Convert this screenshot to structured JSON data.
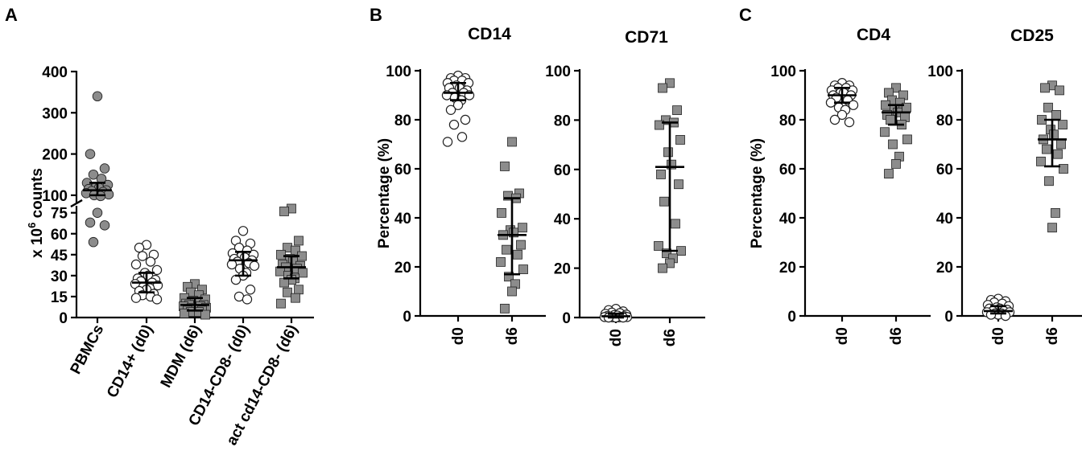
{
  "panels": {
    "A": {
      "letter": "A"
    },
    "B": {
      "letter": "B"
    },
    "C": {
      "letter": "C"
    }
  },
  "colors": {
    "filled_marker": "#8c8c8c",
    "open_marker": "#ffffff",
    "marker_edge": "#222222",
    "axis": "#000000"
  },
  "chart_data": [
    {
      "id": "A",
      "type": "scatter",
      "subtype": "dot-plot-broken-axis",
      "title": "",
      "ylabel_prefix": "x 10",
      "ylabel_exp": "6",
      "ylabel_suffix": " counts",
      "ylim_lower": [
        0,
        80
      ],
      "ylim_upper": [
        90,
        400
      ],
      "yticks_lower": [
        0,
        15,
        30,
        45,
        60,
        75
      ],
      "yticks_upper": [
        100,
        200,
        300,
        400
      ],
      "categories": [
        "PBMCs",
        "CD14+ (d0)",
        "MDM (d6)",
        "CD14-CD8- (d0)",
        "act cd14-CD8- (d6)"
      ],
      "markers": [
        "circle-filled",
        "circle-open",
        "square-filled",
        "circle-open",
        "square-filled"
      ],
      "groups": [
        {
          "values": [
            340,
            200,
            165,
            150,
            140,
            130,
            125,
            120,
            118,
            115,
            112,
            110,
            108,
            105,
            102,
            100,
            98,
            75,
            68,
            66,
            54
          ],
          "median": 112,
          "iqr": [
            100,
            130
          ]
        },
        {
          "values": [
            52,
            50,
            45,
            44,
            40,
            38,
            34,
            32,
            30,
            28,
            27,
            26,
            25,
            24,
            23,
            22,
            21,
            20,
            19,
            17,
            16,
            15,
            14,
            13
          ],
          "median": 25,
          "iqr": [
            18,
            32
          ]
        },
        {
          "values": [
            24,
            22,
            20,
            18,
            16,
            14,
            13,
            12,
            11,
            10,
            9,
            9,
            8,
            8,
            7,
            7,
            6,
            6,
            5,
            5,
            4,
            4,
            3,
            2
          ],
          "median": 9,
          "iqr": [
            5,
            14
          ]
        },
        {
          "values": [
            62,
            55,
            53,
            50,
            48,
            46,
            45,
            44,
            43,
            42,
            41,
            40,
            39,
            38,
            37,
            35,
            32,
            30,
            27,
            20,
            15,
            13
          ],
          "median": 41,
          "iqr": [
            30,
            47
          ]
        },
        {
          "values": [
            78,
            76,
            55,
            50,
            48,
            45,
            44,
            42,
            40,
            38,
            37,
            36,
            35,
            33,
            32,
            30,
            28,
            27,
            25,
            20,
            18,
            14,
            10
          ],
          "median": 36,
          "iqr": [
            28,
            44
          ]
        }
      ]
    },
    {
      "id": "B1",
      "type": "scatter",
      "subtype": "dot-plot",
      "title": "CD14",
      "ylabel": "Percentage (%)",
      "ylim": [
        0,
        100
      ],
      "yticks": [
        0,
        20,
        40,
        60,
        80,
        100
      ],
      "categories": [
        "d0",
        "d6"
      ],
      "markers": [
        "circle-open",
        "square-filled"
      ],
      "groups": [
        {
          "values": [
            98,
            97,
            97,
            96,
            96,
            95,
            95,
            94,
            93,
            93,
            92,
            91,
            91,
            90,
            90,
            89,
            88,
            86,
            84,
            80,
            78,
            73,
            71
          ],
          "median": 91,
          "iqr": [
            88,
            95
          ]
        },
        {
          "values": [
            71,
            61,
            50,
            49,
            48,
            42,
            36,
            35,
            34,
            33,
            29,
            27,
            25,
            22,
            19,
            16,
            13,
            10,
            3
          ],
          "median": 33,
          "iqr": [
            17,
            48
          ]
        }
      ]
    },
    {
      "id": "B2",
      "type": "scatter",
      "subtype": "dot-plot",
      "title": "CD71",
      "ylabel": "",
      "ylim": [
        0,
        100
      ],
      "yticks": [
        0,
        20,
        40,
        60,
        80,
        100
      ],
      "categories": [
        "d0",
        "d6"
      ],
      "markers": [
        "circle-open",
        "square-filled"
      ],
      "groups": [
        {
          "values": [
            3.5,
            3,
            2.5,
            2,
            1.8,
            1.5,
            1.2,
            1,
            0.8,
            0.6,
            0.5,
            0.4,
            0.3,
            0.2,
            0.2,
            0.1,
            0.1,
            0,
            0,
            0
          ],
          "median": 0.5,
          "iqr": [
            0,
            1.5
          ]
        },
        {
          "values": [
            95,
            93,
            84,
            80,
            79,
            78,
            72,
            67,
            62,
            58,
            54,
            47,
            38,
            29,
            27,
            26,
            24,
            22,
            20
          ],
          "median": 61,
          "iqr": [
            27,
            79
          ]
        }
      ]
    },
    {
      "id": "C1",
      "type": "scatter",
      "subtype": "dot-plot",
      "title": "CD4",
      "ylabel": "Percentage (%)",
      "ylim": [
        0,
        100
      ],
      "yticks": [
        0,
        20,
        40,
        60,
        80,
        100
      ],
      "categories": [
        "d0",
        "d6"
      ],
      "markers": [
        "circle-open",
        "square-filled"
      ],
      "groups": [
        {
          "values": [
            95,
            94,
            94,
            93,
            93,
            92,
            92,
            91,
            91,
            90,
            90,
            89,
            88,
            87,
            86,
            85,
            84,
            82,
            80,
            79
          ],
          "median": 90,
          "iqr": [
            87,
            93
          ]
        },
        {
          "values": [
            93,
            91,
            90,
            88,
            87,
            86,
            85,
            84,
            83,
            82,
            81,
            80,
            78,
            75,
            72,
            70,
            65,
            62,
            58
          ],
          "median": 83,
          "iqr": [
            78,
            86
          ]
        }
      ]
    },
    {
      "id": "C2",
      "type": "scatter",
      "subtype": "dot-plot",
      "title": "CD25",
      "ylabel": "",
      "ylim": [
        0,
        100
      ],
      "yticks": [
        0,
        20,
        40,
        60,
        80,
        100
      ],
      "categories": [
        "d0",
        "d6"
      ],
      "markers": [
        "circle-open",
        "square-filled"
      ],
      "groups": [
        {
          "values": [
            7,
            6.5,
            6,
            5.5,
            5,
            4.5,
            4,
            3.5,
            3,
            3,
            2.5,
            2,
            2,
            1.5,
            1.5,
            1,
            1,
            0.5,
            0.5,
            0
          ],
          "median": 2,
          "iqr": [
            1,
            4
          ]
        },
        {
          "values": [
            94,
            93,
            92,
            85,
            82,
            80,
            78,
            76,
            74,
            72,
            70,
            68,
            66,
            63,
            60,
            55,
            42,
            36
          ],
          "median": 72,
          "iqr": [
            61,
            80
          ]
        }
      ]
    }
  ]
}
